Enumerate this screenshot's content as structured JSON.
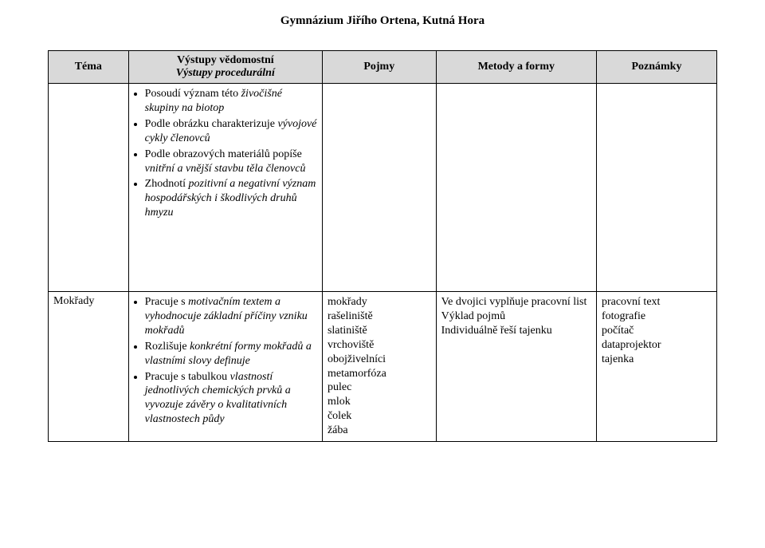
{
  "header": "Gymnázium Jiřího Ortena, Kutná Hora",
  "columns": {
    "tema": "Téma",
    "vystupy_line1": "Výstupy vědomostní",
    "vystupy_line2": "Výstupy procedurální",
    "pojmy": "Pojmy",
    "metody": "Metody a formy",
    "poznamky": "Poznámky"
  },
  "row1": {
    "tema": "",
    "vystupy": [
      {
        "lead": "Posoudí význam této ",
        "ital": "živočišné skupiny na biotop"
      },
      {
        "lead": "Podle obrázku charakterizuje ",
        "ital": "vývojové cykly členovců"
      },
      {
        "lead": "Podle obrazových materiálů popíše ",
        "ital": "vnitřní a vnější stavbu těla členovců"
      },
      {
        "lead": "Zhodnotí ",
        "ital": "pozitivní a negativní význam hospodářských i škodlivých druhů hmyzu"
      }
    ],
    "pojmy": "",
    "metody": "",
    "poznamky": ""
  },
  "row2": {
    "tema": "Mokřady",
    "vystupy": [
      {
        "lead": "Pracuje s ",
        "ital": "motivačním textem a vyhodnocuje základní příčiny vzniku mokřadů"
      },
      {
        "lead": "Rozlišuje ",
        "ital": "konkrétní formy mokřadů a vlastními slovy definuje"
      },
      {
        "lead": "Pracuje s tabulkou ",
        "ital": "vlastností jednotlivých chemických prvků a vyvozuje závěry o kvalitativních vlastnostech půdy"
      }
    ],
    "pojmy": [
      "mokřady",
      "rašeliniště",
      "slatiniště",
      "vrchoviště",
      "obojživelníci",
      "metamorfóza",
      "pulec",
      "mlok",
      "čolek",
      "žába"
    ],
    "metody": [
      "Ve dvojici vyplňuje pracovní list",
      "Výklad pojmů",
      "Individuálně řeší tajenku"
    ],
    "poznamky": [
      "pracovní text",
      "fotografie",
      "počítač",
      "dataprojektor",
      "tajenka"
    ]
  }
}
